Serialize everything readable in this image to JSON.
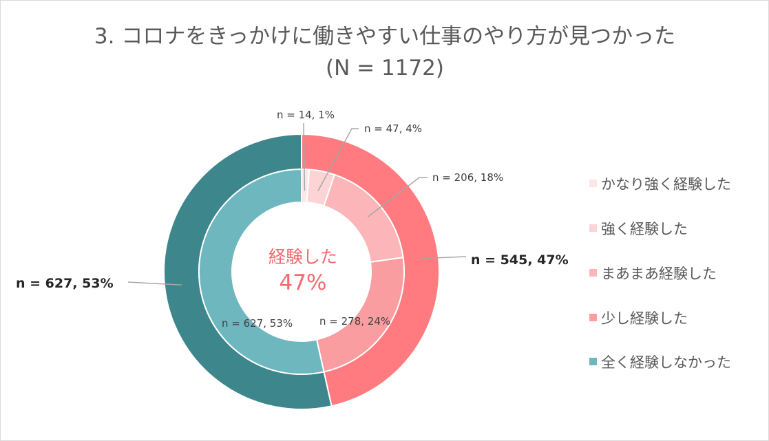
{
  "chart_data": {
    "type": "donut",
    "title": "3. コロナをきっかけに働きやすい仕事のやり方が見つかった",
    "subtitle": "(N = 1172)",
    "center": {
      "line1": "経験した",
      "line2": "47%",
      "color": "#F3696F"
    },
    "inner_series": [
      {
        "name": "かなり強く経験した",
        "n": 14,
        "pct": 1,
        "label": "n = 14, 1%",
        "color": "#FDE6E7"
      },
      {
        "name": "強く経験した",
        "n": 47,
        "pct": 4,
        "label": "n = 47, 4%",
        "color": "#FDD4D6"
      },
      {
        "name": "まあまあ経験した",
        "n": 206,
        "pct": 18,
        "label": "n = 206, 18%",
        "color": "#FCB6B9"
      },
      {
        "name": "少し経験した",
        "n": 278,
        "pct": 24,
        "label": "n = 278, 24%",
        "color": "#FA9DA0"
      },
      {
        "name": "全く経験しなかった",
        "n": 627,
        "pct": 53,
        "label": "n = 627, 53%",
        "color": "#6FB7BE"
      }
    ],
    "outer_series": [
      {
        "n": 545,
        "pct": 47,
        "label": "n = 545, 47%",
        "color": "#FF7B80"
      },
      {
        "n": 627,
        "pct": 53,
        "label": "n = 627, 53%",
        "color": "#3C868C"
      }
    ],
    "legend": {
      "position": "right",
      "items": [
        {
          "label": "かなり強く経験した",
          "color": "#FDE6E7"
        },
        {
          "label": "強く経験した",
          "color": "#FDD4D6"
        },
        {
          "label": "まあまあ経験した",
          "color": "#FCB6B9"
        },
        {
          "label": "少し経験した",
          "color": "#FA9DA0"
        },
        {
          "label": "全く経験しなかった",
          "color": "#6FB7BE"
        }
      ]
    }
  }
}
